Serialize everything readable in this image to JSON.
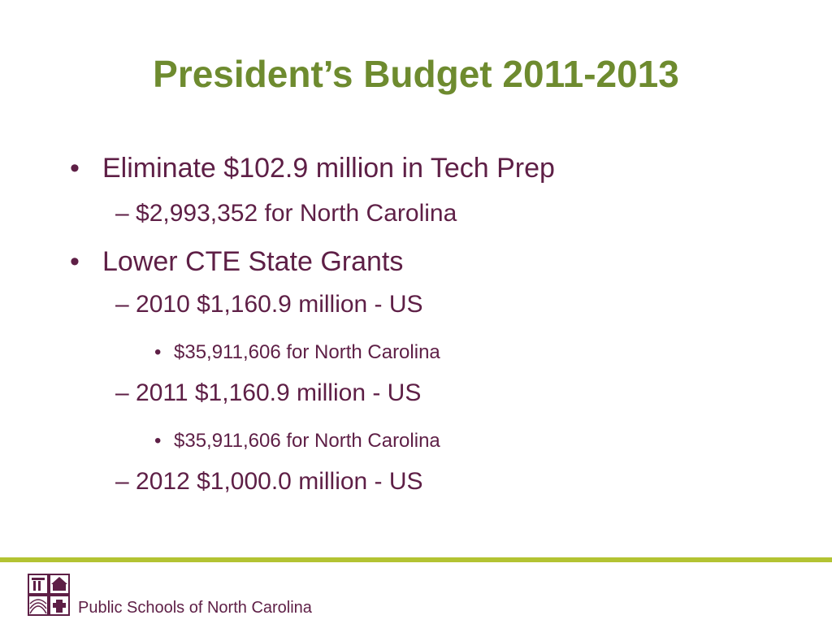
{
  "slide": {
    "title": "President’s Budget 2011-2013"
  },
  "bullets": {
    "item1": {
      "marker": "•",
      "text": "Eliminate $102.9 million in Tech Prep",
      "sub1": "– $2,993,352 for North Carolina"
    },
    "item2": {
      "marker": "•",
      "text": "Lower CTE State Grants",
      "sub1": "– 2010  $1,160.9 million - US",
      "sub1_detail_marker": "•",
      "sub1_detail": "$35,911,606 for North Carolina",
      "sub2": "– 2011  $1,160.9 million - US",
      "sub2_detail_marker": "•",
      "sub2_detail": "$35,911,606 for North Carolina",
      "sub3": "– 2012  $1,000.0 million - US"
    }
  },
  "footer": {
    "organization": "Public Schools of North Carolina",
    "logo_icon": "nc-public-schools-seal-icon",
    "rule_color": "#b3c332",
    "title_color": "#6e8b2f",
    "text_color": "#5e1f46"
  }
}
